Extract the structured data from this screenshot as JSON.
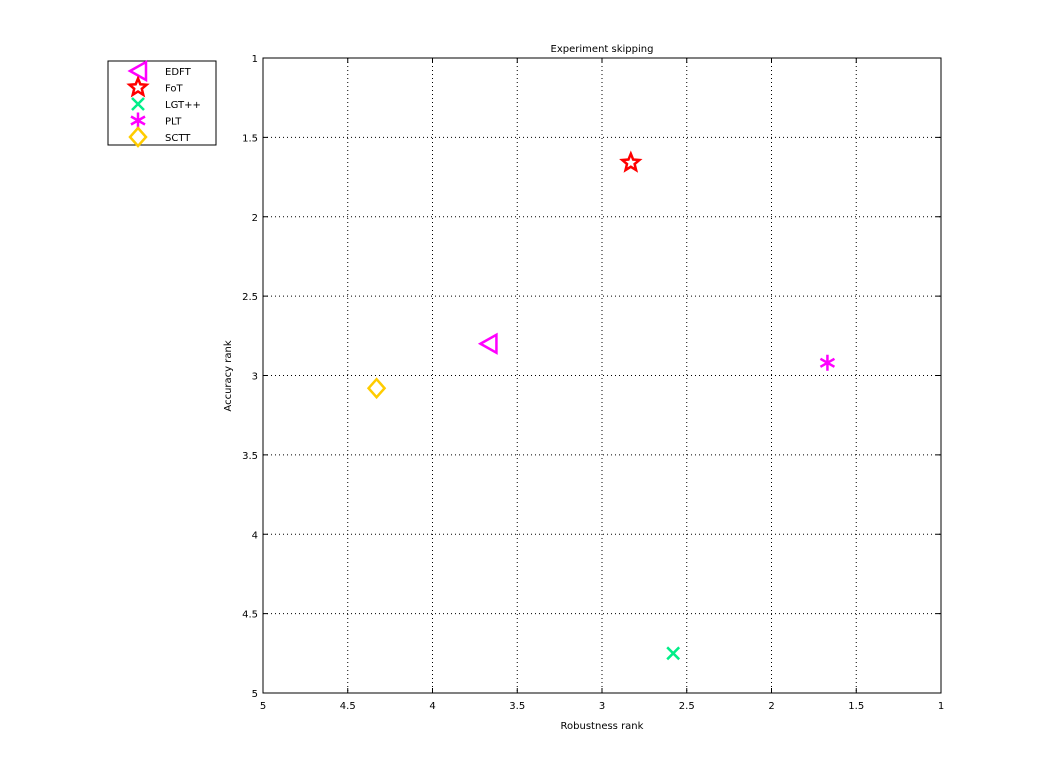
{
  "chart_data": {
    "type": "scatter",
    "title": "Experiment skipping",
    "xlabel": "Robustness rank",
    "ylabel": "Accuracy rank",
    "xlim": [
      5,
      1
    ],
    "ylim": [
      5,
      1
    ],
    "x_reversed": true,
    "y_reversed": true,
    "xticks": [
      5,
      4.5,
      4,
      3.5,
      3,
      2.5,
      2,
      1.5,
      1
    ],
    "yticks": [
      1,
      1.5,
      2,
      2.5,
      3,
      3.5,
      4,
      4.5,
      5
    ],
    "xtick_labels": [
      "5",
      "4.5",
      "4",
      "3.5",
      "3",
      "2.5",
      "2",
      "1.5",
      "1"
    ],
    "ytick_labels": [
      "1",
      "1.5",
      "2",
      "2.5",
      "3",
      "3.5",
      "4",
      "4.5",
      "5"
    ],
    "grid": true,
    "legend_position": "top-left outside",
    "series": [
      {
        "name": "EDFT",
        "marker": "triangle-left",
        "color": "#ff00ff",
        "x": 3.67,
        "y": 2.8
      },
      {
        "name": "FoT",
        "marker": "pentagram",
        "color": "#ff0000",
        "x": 2.83,
        "y": 1.66
      },
      {
        "name": "LGT++",
        "marker": "x",
        "color": "#00ee88",
        "x": 2.58,
        "y": 4.75
      },
      {
        "name": "PLT",
        "marker": "asterisk",
        "color": "#ff00ff",
        "x": 1.67,
        "y": 2.92
      },
      {
        "name": "SCTT",
        "marker": "diamond",
        "color": "#ffcc00",
        "x": 4.33,
        "y": 3.08
      }
    ]
  }
}
